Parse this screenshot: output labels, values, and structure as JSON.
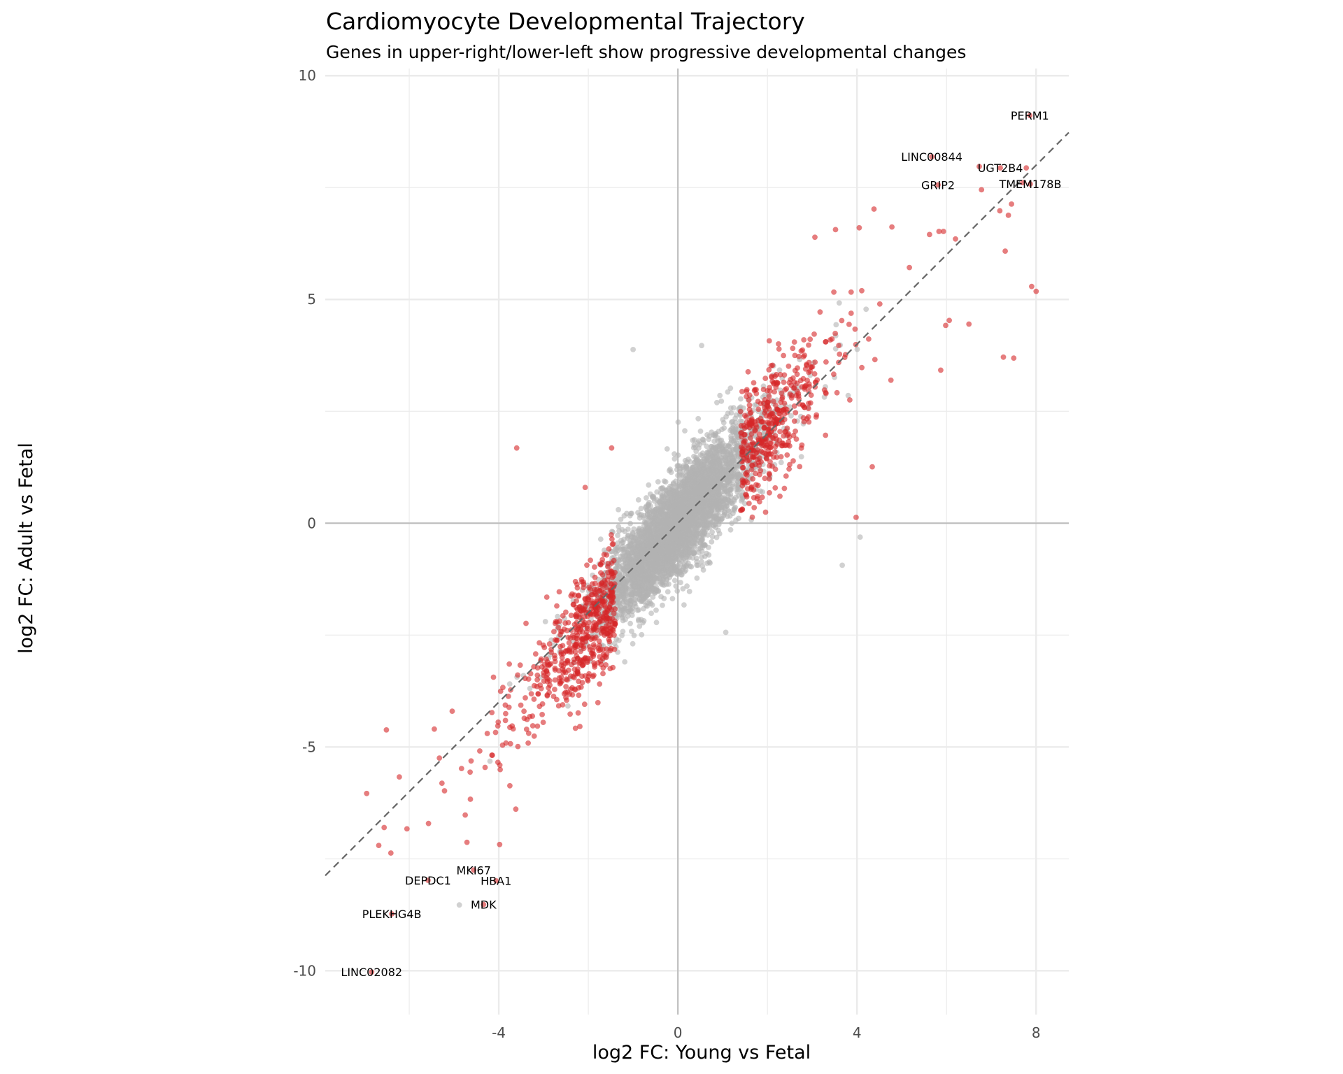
{
  "chart_data": {
    "type": "scatter",
    "title": "Cardiomyocyte Developmental Trajectory",
    "subtitle": "Genes in upper-right/lower-left show progressive developmental changes",
    "xlabel": "log2 FC: Young vs Fetal",
    "ylabel": "log2 FC: Adult vs Fetal",
    "xlim": [
      -7.875,
      8.73
    ],
    "ylim": [
      -10.98,
      10.16
    ],
    "x_ticks": [
      {
        "value": -4,
        "label": "-4"
      },
      {
        "value": 0,
        "label": "0"
      },
      {
        "value": 4,
        "label": "4"
      },
      {
        "value": 8,
        "label": "8"
      }
    ],
    "y_ticks": [
      {
        "value": -10,
        "label": "-10"
      },
      {
        "value": -5,
        "label": "-5"
      },
      {
        "value": 0,
        "label": "0"
      },
      {
        "value": 5,
        "label": "5"
      },
      {
        "value": 10,
        "label": "10"
      }
    ],
    "x_minor": [
      -6,
      -2,
      2,
      6
    ],
    "y_minor": [
      -7.5,
      -2.5,
      2.5,
      7.5
    ],
    "grid": true,
    "reference_lines": {
      "hline": 0,
      "vline": 0,
      "diagonal": {
        "slope": 1,
        "intercept": 0,
        "style": "dashed"
      }
    },
    "colors": {
      "significant": "#d62728",
      "not_significant": "#b3b3b3",
      "reference": "#bdbdbd",
      "diagonal": "#666666",
      "grid": "#ebebeb"
    },
    "legend": "none",
    "labeled_genes": [
      {
        "gene": "PERM1",
        "x": 7.86,
        "y": 9.11,
        "significant": true
      },
      {
        "gene": "LINC00844",
        "x": 5.67,
        "y": 8.19,
        "significant": true
      },
      {
        "gene": "UGT2B4",
        "x": 7.2,
        "y": 7.94,
        "significant": true
      },
      {
        "gene": "TMEM178B",
        "x": 7.87,
        "y": 7.58,
        "significant": true
      },
      {
        "gene": "GRIP2",
        "x": 5.81,
        "y": 7.56,
        "significant": true
      },
      {
        "gene": "MKI67",
        "x": -4.56,
        "y": -7.75,
        "significant": true
      },
      {
        "gene": "DEPDC1",
        "x": -5.58,
        "y": -7.98,
        "significant": true
      },
      {
        "gene": "HBA1",
        "x": -4.06,
        "y": -7.99,
        "significant": true
      },
      {
        "gene": "MDK",
        "x": -4.34,
        "y": -8.52,
        "significant": true
      },
      {
        "gene": "PLEKHG4B",
        "x": -6.39,
        "y": -8.73,
        "significant": true
      },
      {
        "gene": "LINC02082",
        "x": -6.84,
        "y": -10.03,
        "significant": true
      }
    ],
    "outlier_points": [
      {
        "x": 6.73,
        "y": 7.97,
        "significant": true
      },
      {
        "x": 7.78,
        "y": 7.94,
        "significant": true
      },
      {
        "x": 7.7,
        "y": 7.61,
        "significant": true
      },
      {
        "x": 6.78,
        "y": 7.45,
        "significant": true
      },
      {
        "x": 4.38,
        "y": 7.02,
        "significant": true
      },
      {
        "x": 4.05,
        "y": 6.6,
        "significant": true
      },
      {
        "x": 4.78,
        "y": 6.62,
        "significant": true
      },
      {
        "x": 3.52,
        "y": 6.56,
        "significant": true
      },
      {
        "x": 3.06,
        "y": 6.39,
        "significant": true
      },
      {
        "x": 5.62,
        "y": 6.45,
        "significant": true
      },
      {
        "x": 5.83,
        "y": 6.52,
        "significant": true
      },
      {
        "x": 5.93,
        "y": 6.52,
        "significant": true
      },
      {
        "x": 6.2,
        "y": 6.35,
        "significant": true
      },
      {
        "x": 7.31,
        "y": 6.08,
        "significant": true
      },
      {
        "x": 7.19,
        "y": 6.98,
        "significant": true
      },
      {
        "x": 7.38,
        "y": 6.88,
        "significant": true
      },
      {
        "x": 7.45,
        "y": 7.13,
        "significant": true
      },
      {
        "x": 7.9,
        "y": 5.29,
        "significant": true
      },
      {
        "x": 8.0,
        "y": 5.18,
        "significant": true
      },
      {
        "x": 7.27,
        "y": 3.71,
        "significant": true
      },
      {
        "x": 7.5,
        "y": 3.69,
        "significant": true
      },
      {
        "x": 6.5,
        "y": 4.45,
        "significant": true
      },
      {
        "x": 5.98,
        "y": 4.42,
        "significant": true
      },
      {
        "x": 6.06,
        "y": 4.53,
        "significant": true
      },
      {
        "x": 5.87,
        "y": 3.42,
        "significant": true
      },
      {
        "x": 3.98,
        "y": 0.13,
        "significant": true
      },
      {
        "x": 4.34,
        "y": 1.26,
        "significant": true
      },
      {
        "x": -3.6,
        "y": 1.68,
        "significant": true
      },
      {
        "x": -1.48,
        "y": 1.68,
        "significant": true
      },
      {
        "x": -2.07,
        "y": 0.8,
        "significant": true
      },
      {
        "x": -1.0,
        "y": 3.88,
        "significant": false
      },
      {
        "x": 0.53,
        "y": 3.97,
        "significant": false
      },
      {
        "x": 3.67,
        "y": -0.94,
        "significant": false
      },
      {
        "x": 4.07,
        "y": -0.31,
        "significant": false
      },
      {
        "x": 1.07,
        "y": -2.44,
        "significant": false
      },
      {
        "x": -4.88,
        "y": -8.53,
        "significant": false
      },
      {
        "x": -6.95,
        "y": -6.04,
        "significant": true
      },
      {
        "x": -6.51,
        "y": -4.62,
        "significant": true
      },
      {
        "x": -6.56,
        "y": -6.8,
        "significant": true
      },
      {
        "x": -6.68,
        "y": -7.2,
        "significant": true
      },
      {
        "x": -6.41,
        "y": -7.37,
        "significant": true
      },
      {
        "x": -6.05,
        "y": -6.83,
        "significant": true
      },
      {
        "x": -6.22,
        "y": -5.67,
        "significant": true
      },
      {
        "x": -4.71,
        "y": -7.13,
        "significant": true
      },
      {
        "x": -3.98,
        "y": -7.18,
        "significant": true
      },
      {
        "x": -4.75,
        "y": -6.52,
        "significant": true
      },
      {
        "x": -3.62,
        "y": -6.39,
        "significant": true
      },
      {
        "x": -5.57,
        "y": -6.71,
        "significant": true
      },
      {
        "x": -5.27,
        "y": -5.81,
        "significant": true
      },
      {
        "x": -5.04,
        "y": -4.2,
        "significant": true
      },
      {
        "x": -5.44,
        "y": -4.6,
        "significant": true
      }
    ]
  }
}
